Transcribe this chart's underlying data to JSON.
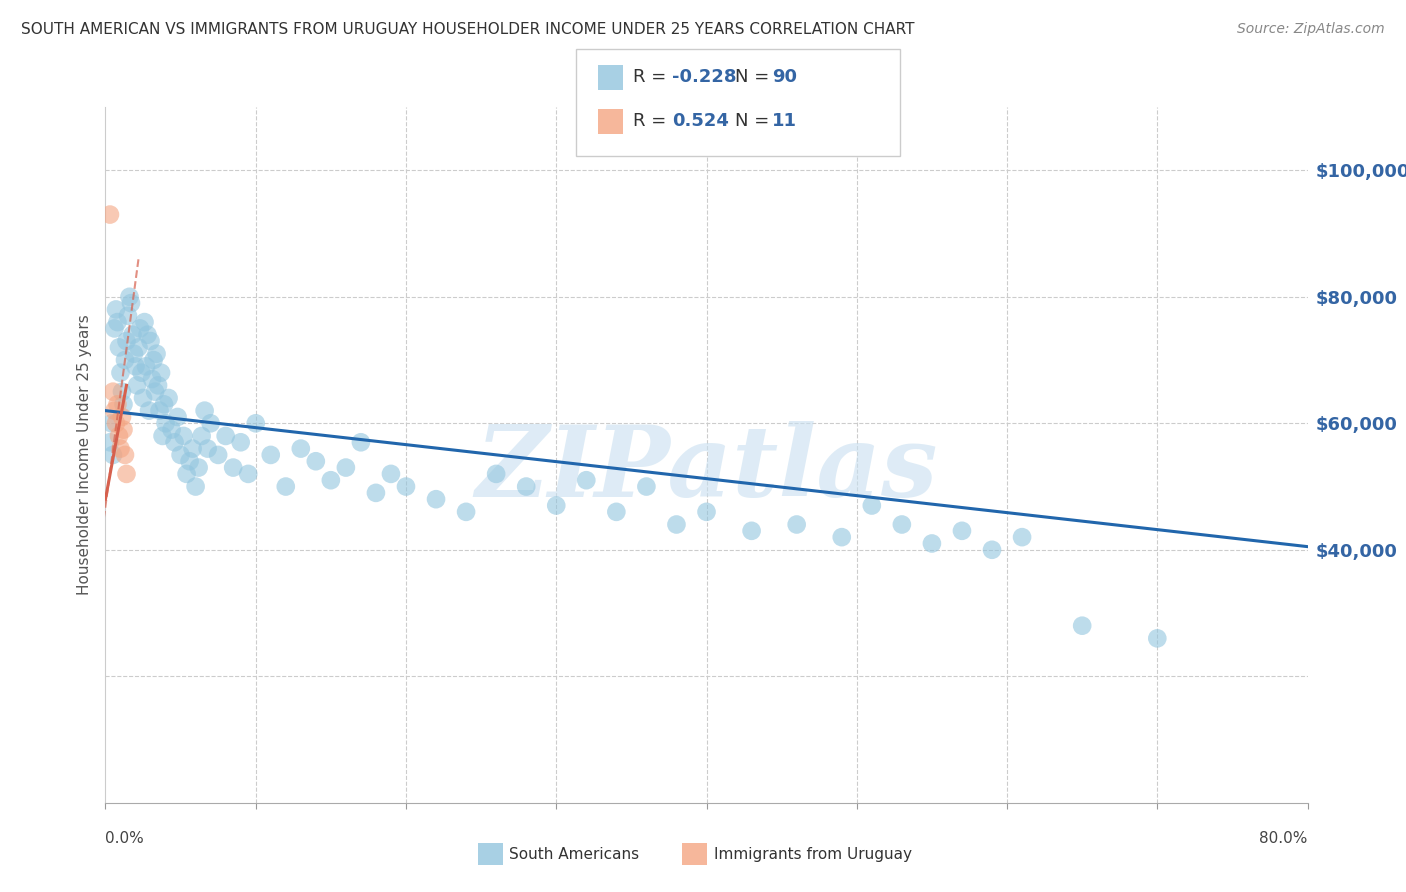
{
  "title": "SOUTH AMERICAN VS IMMIGRANTS FROM URUGUAY HOUSEHOLDER INCOME UNDER 25 YEARS CORRELATION CHART",
  "source": "Source: ZipAtlas.com",
  "ylabel": "Householder Income Under 25 years",
  "right_ytick_labels": [
    "$100,000",
    "$80,000",
    "$60,000",
    "$40,000"
  ],
  "right_ytick_values": [
    100000,
    80000,
    60000,
    40000
  ],
  "xlim": [
    0.0,
    0.8
  ],
  "ylim": [
    0,
    110000
  ],
  "blue_color": "#92c5de",
  "pink_color": "#f4a582",
  "blue_line_color": "#2166ac",
  "pink_line_color": "#d6604d",
  "legend_blue_R": "-0.228",
  "legend_blue_N": "90",
  "legend_pink_R": "0.524",
  "legend_pink_N": "11",
  "watermark": "ZIPatlas",
  "blue_dots_x": [
    0.003,
    0.004,
    0.005,
    0.006,
    0.007,
    0.008,
    0.009,
    0.01,
    0.011,
    0.012,
    0.013,
    0.014,
    0.015,
    0.016,
    0.017,
    0.018,
    0.019,
    0.02,
    0.021,
    0.022,
    0.023,
    0.024,
    0.025,
    0.026,
    0.027,
    0.028,
    0.029,
    0.03,
    0.031,
    0.032,
    0.033,
    0.034,
    0.035,
    0.036,
    0.037,
    0.038,
    0.039,
    0.04,
    0.042,
    0.044,
    0.046,
    0.048,
    0.05,
    0.052,
    0.054,
    0.056,
    0.058,
    0.06,
    0.062,
    0.064,
    0.066,
    0.068,
    0.07,
    0.075,
    0.08,
    0.085,
    0.09,
    0.095,
    0.1,
    0.11,
    0.12,
    0.13,
    0.14,
    0.15,
    0.16,
    0.17,
    0.18,
    0.19,
    0.2,
    0.22,
    0.24,
    0.26,
    0.28,
    0.3,
    0.32,
    0.34,
    0.36,
    0.38,
    0.4,
    0.43,
    0.46,
    0.49,
    0.51,
    0.53,
    0.55,
    0.57,
    0.59,
    0.61,
    0.65,
    0.7
  ],
  "blue_dots_y": [
    57000,
    60000,
    55000,
    75000,
    78000,
    76000,
    72000,
    68000,
    65000,
    63000,
    70000,
    73000,
    77000,
    80000,
    79000,
    74000,
    71000,
    69000,
    66000,
    72000,
    75000,
    68000,
    64000,
    76000,
    69000,
    74000,
    62000,
    73000,
    67000,
    70000,
    65000,
    71000,
    66000,
    62000,
    68000,
    58000,
    63000,
    60000,
    64000,
    59000,
    57000,
    61000,
    55000,
    58000,
    52000,
    54000,
    56000,
    50000,
    53000,
    58000,
    62000,
    56000,
    60000,
    55000,
    58000,
    53000,
    57000,
    52000,
    60000,
    55000,
    50000,
    56000,
    54000,
    51000,
    53000,
    57000,
    49000,
    52000,
    50000,
    48000,
    46000,
    52000,
    50000,
    47000,
    51000,
    46000,
    50000,
    44000,
    46000,
    43000,
    44000,
    42000,
    47000,
    44000,
    41000,
    43000,
    40000,
    42000,
    28000,
    26000
  ],
  "pink_dots_x": [
    0.003,
    0.005,
    0.006,
    0.007,
    0.008,
    0.009,
    0.01,
    0.011,
    0.012,
    0.013,
    0.014
  ],
  "pink_dots_y": [
    93000,
    65000,
    62000,
    60000,
    63000,
    58000,
    56000,
    61000,
    59000,
    55000,
    52000
  ],
  "blue_line_x0": 0.0,
  "blue_line_y0": 62000,
  "blue_line_x1": 0.8,
  "blue_line_y1": 40500,
  "pink_line_x0": 0.0,
  "pink_line_y0": 48000,
  "pink_line_x1": 0.014,
  "pink_line_y1": 66000,
  "pink_line_ext_x0": -0.005,
  "pink_line_ext_y0": 38000,
  "pink_line_ext_x1": 0.022,
  "pink_line_ext_y1": 86000
}
